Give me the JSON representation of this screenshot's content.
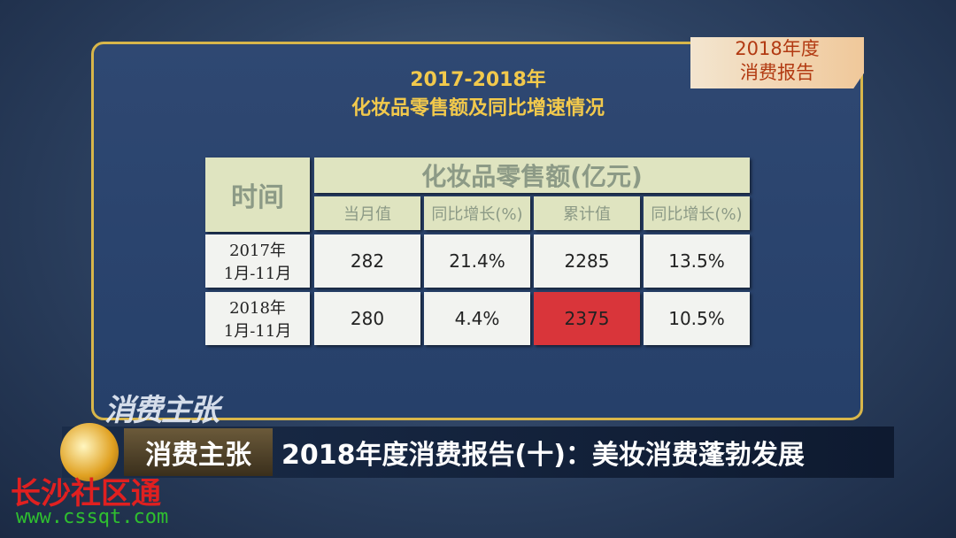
{
  "badge": {
    "line1": "2018年度",
    "line2": "消费报告"
  },
  "title": {
    "line1": "2017-2018年",
    "line2": "化妆品零售额及同比增速情况"
  },
  "table": {
    "corner": "时间",
    "group_header": "化妆品零售额(亿元)",
    "columns": [
      "当月值",
      "同比增长(%)",
      "累计值",
      "同比增长(%)"
    ],
    "rows": [
      {
        "label": [
          "2017年",
          "1月-11月"
        ],
        "cells": [
          "282",
          "21.4%",
          "2285",
          "13.5%"
        ]
      },
      {
        "label": [
          "2018年",
          "1月-11月"
        ],
        "cells": [
          "280",
          "4.4%",
          "2375",
          "10.5%"
        ]
      }
    ],
    "highlight_cell": {
      "row": 1,
      "col": 2,
      "color": "#d9353a"
    }
  },
  "logo": "消费主张",
  "ticker": {
    "program": "消费主张",
    "headline": "2018年度消费报告(十)：美妆消费蓬勃发展"
  },
  "watermark": {
    "name": "长沙社区通",
    "url": "www.cssqt.com"
  }
}
